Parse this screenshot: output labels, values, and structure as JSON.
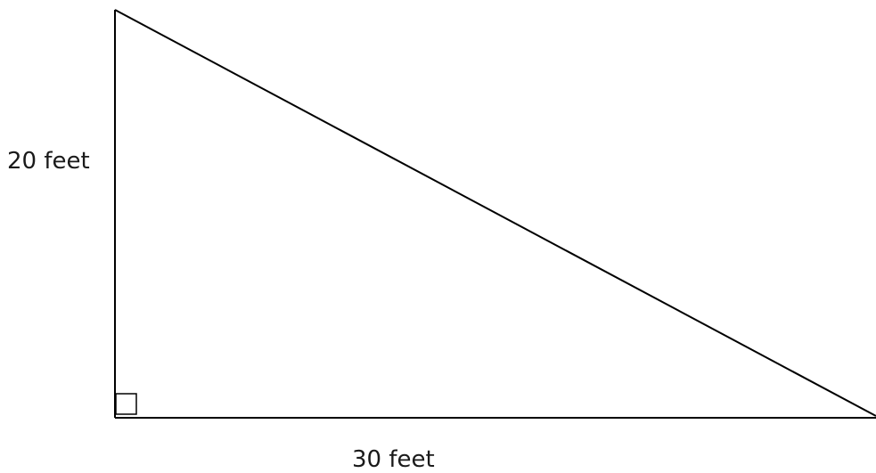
{
  "diagram": {
    "height_label": "20 feet",
    "base_label": "30 feet",
    "stroke_color": "#000000"
  }
}
